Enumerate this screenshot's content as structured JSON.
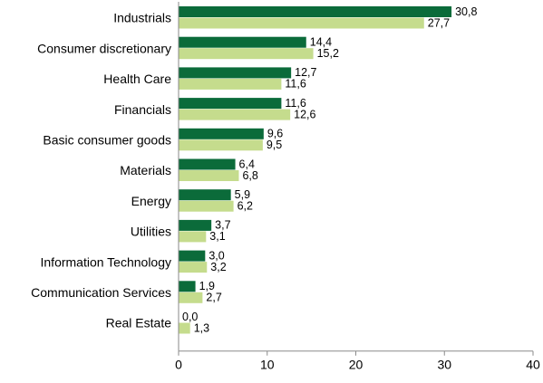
{
  "chart_data": {
    "type": "bar",
    "orientation": "horizontal",
    "categories": [
      "Industrials",
      "Consumer discretionary",
      "Health Care",
      "Financials",
      "Basic consumer goods",
      "Materials",
      "Energy",
      "Utilities",
      "Information Technology",
      "Communication Services",
      "Real Estate"
    ],
    "series": [
      {
        "color": "#0b6b3a",
        "values": [
          30.8,
          14.4,
          12.7,
          11.6,
          9.6,
          6.4,
          5.9,
          3.7,
          3.0,
          1.9,
          0.0
        ],
        "labels": [
          "30,8",
          "14,4",
          "12,7",
          "11,6",
          "9,6",
          "6,4",
          "5,9",
          "3,7",
          "3,0",
          "1,9",
          "0,0"
        ]
      },
      {
        "color": "#c5dc8d",
        "values": [
          27.7,
          15.2,
          11.6,
          12.6,
          9.5,
          6.8,
          6.2,
          3.1,
          3.2,
          2.7,
          1.3
        ],
        "labels": [
          "27,7",
          "15,2",
          "11,6",
          "12,6",
          "9,5",
          "6,8",
          "6,2",
          "3,1",
          "3,2",
          "2,7",
          "1,3"
        ]
      }
    ],
    "xlim": [
      0,
      40
    ],
    "xticks": [
      0,
      10,
      20,
      30,
      40
    ],
    "title": "",
    "xlabel": "",
    "ylabel": "",
    "grid": false,
    "legend": "none"
  }
}
